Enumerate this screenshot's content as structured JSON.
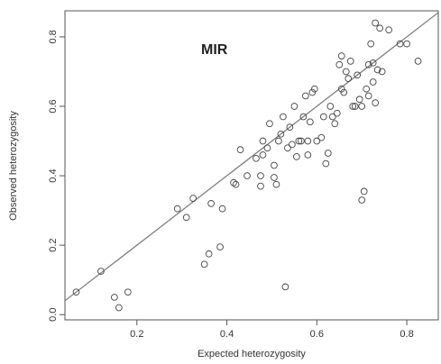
{
  "chart_data": {
    "type": "scatter",
    "annotation": "MIR",
    "xlabel": "Expected heterozygosity",
    "ylabel": "Observed heterozygosity",
    "xlim": [
      0.04,
      0.87
    ],
    "ylim": [
      -0.015,
      0.875
    ],
    "xticks": [
      0.2,
      0.4,
      0.6,
      0.8
    ],
    "xtick_labels": [
      "0.2",
      "0.4",
      "0.6",
      "0.8"
    ],
    "yticks": [
      0.0,
      0.2,
      0.4,
      0.6,
      0.8
    ],
    "ytick_labels": [
      "0.0",
      "0.2",
      "0.4",
      "0.6",
      "0.8"
    ],
    "grid": false,
    "reference_line": {
      "slope": 1,
      "intercept": 0
    },
    "points": [
      [
        0.065,
        0.065
      ],
      [
        0.12,
        0.125
      ],
      [
        0.15,
        0.05
      ],
      [
        0.16,
        0.02
      ],
      [
        0.18,
        0.065
      ],
      [
        0.29,
        0.305
      ],
      [
        0.31,
        0.28
      ],
      [
        0.325,
        0.335
      ],
      [
        0.35,
        0.145
      ],
      [
        0.36,
        0.175
      ],
      [
        0.365,
        0.32
      ],
      [
        0.385,
        0.195
      ],
      [
        0.39,
        0.305
      ],
      [
        0.415,
        0.38
      ],
      [
        0.42,
        0.375
      ],
      [
        0.43,
        0.475
      ],
      [
        0.445,
        0.4
      ],
      [
        0.465,
        0.45
      ],
      [
        0.475,
        0.4
      ],
      [
        0.475,
        0.37
      ],
      [
        0.48,
        0.46
      ],
      [
        0.48,
        0.5
      ],
      [
        0.49,
        0.48
      ],
      [
        0.495,
        0.55
      ],
      [
        0.505,
        0.395
      ],
      [
        0.505,
        0.43
      ],
      [
        0.51,
        0.375
      ],
      [
        0.515,
        0.5
      ],
      [
        0.52,
        0.52
      ],
      [
        0.525,
        0.57
      ],
      [
        0.53,
        0.08
      ],
      [
        0.535,
        0.48
      ],
      [
        0.54,
        0.54
      ],
      [
        0.545,
        0.49
      ],
      [
        0.55,
        0.6
      ],
      [
        0.555,
        0.455
      ],
      [
        0.56,
        0.5
      ],
      [
        0.565,
        0.5
      ],
      [
        0.57,
        0.57
      ],
      [
        0.575,
        0.63
      ],
      [
        0.58,
        0.46
      ],
      [
        0.58,
        0.5
      ],
      [
        0.585,
        0.555
      ],
      [
        0.59,
        0.64
      ],
      [
        0.595,
        0.65
      ],
      [
        0.6,
        0.5
      ],
      [
        0.61,
        0.51
      ],
      [
        0.615,
        0.57
      ],
      [
        0.62,
        0.435
      ],
      [
        0.625,
        0.465
      ],
      [
        0.63,
        0.6
      ],
      [
        0.635,
        0.57
      ],
      [
        0.64,
        0.55
      ],
      [
        0.645,
        0.58
      ],
      [
        0.65,
        0.72
      ],
      [
        0.655,
        0.745
      ],
      [
        0.655,
        0.65
      ],
      [
        0.66,
        0.64
      ],
      [
        0.665,
        0.7
      ],
      [
        0.67,
        0.68
      ],
      [
        0.675,
        0.73
      ],
      [
        0.68,
        0.6
      ],
      [
        0.685,
        0.6
      ],
      [
        0.69,
        0.69
      ],
      [
        0.695,
        0.62
      ],
      [
        0.7,
        0.6
      ],
      [
        0.7,
        0.33
      ],
      [
        0.705,
        0.355
      ],
      [
        0.71,
        0.65
      ],
      [
        0.715,
        0.63
      ],
      [
        0.715,
        0.72
      ],
      [
        0.72,
        0.78
      ],
      [
        0.725,
        0.725
      ],
      [
        0.725,
        0.67
      ],
      [
        0.73,
        0.61
      ],
      [
        0.73,
        0.84
      ],
      [
        0.735,
        0.705
      ],
      [
        0.74,
        0.825
      ],
      [
        0.745,
        0.7
      ],
      [
        0.76,
        0.82
      ],
      [
        0.785,
        0.78
      ],
      [
        0.8,
        0.78
      ],
      [
        0.825,
        0.73
      ]
    ]
  }
}
